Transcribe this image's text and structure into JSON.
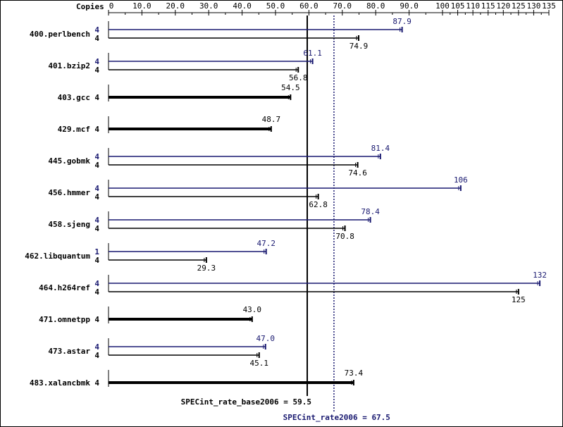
{
  "chart_data": {
    "type": "bar",
    "copies_label": "Copies",
    "x_axis": {
      "min": 0,
      "max": 135,
      "ticks": [
        0,
        10,
        20,
        30,
        40,
        50,
        60,
        70,
        80,
        90,
        100,
        105,
        110,
        115,
        120,
        125,
        130,
        135
      ],
      "tick_labels": [
        "0",
        "10.0",
        "20.0",
        "30.0",
        "40.0",
        "50.0",
        "60.0",
        "70.0",
        "80.0",
        "90.0",
        "100",
        "105",
        "110",
        "115",
        "120",
        "125",
        "130",
        "135"
      ]
    },
    "benchmarks": [
      {
        "name": "400.perlbench",
        "peak": {
          "copies": "4",
          "value": 87.9,
          "label": "87.9"
        },
        "base": {
          "copies": "4",
          "value": 74.9,
          "label": "74.9"
        }
      },
      {
        "name": "401.bzip2",
        "peak": {
          "copies": "4",
          "value": 61.1,
          "label": "61.1"
        },
        "base": {
          "copies": "4",
          "value": 56.8,
          "label": "56.8"
        }
      },
      {
        "name": "403.gcc",
        "single": {
          "copies": "4",
          "value": 54.5,
          "label": "54.5"
        }
      },
      {
        "name": "429.mcf",
        "single": {
          "copies": "4",
          "value": 48.7,
          "label": "48.7"
        }
      },
      {
        "name": "445.gobmk",
        "peak": {
          "copies": "4",
          "value": 81.4,
          "label": "81.4"
        },
        "base": {
          "copies": "4",
          "value": 74.6,
          "label": "74.6"
        }
      },
      {
        "name": "456.hmmer",
        "peak": {
          "copies": "4",
          "value": 106,
          "label": "106"
        },
        "base": {
          "copies": "4",
          "value": 62.8,
          "label": "62.8"
        }
      },
      {
        "name": "458.sjeng",
        "peak": {
          "copies": "4",
          "value": 78.4,
          "label": "78.4"
        },
        "base": {
          "copies": "4",
          "value": 70.8,
          "label": "70.8"
        }
      },
      {
        "name": "462.libquantum",
        "peak": {
          "copies": "1",
          "value": 47.2,
          "label": "47.2"
        },
        "base": {
          "copies": "4",
          "value": 29.3,
          "label": "29.3"
        }
      },
      {
        "name": "464.h264ref",
        "peak": {
          "copies": "4",
          "value": 132,
          "label": "132"
        },
        "base": {
          "copies": "4",
          "value": 125,
          "label": "125"
        }
      },
      {
        "name": "471.omnetpp",
        "single": {
          "copies": "4",
          "value": 43.0,
          "label": "43.0"
        }
      },
      {
        "name": "473.astar",
        "peak": {
          "copies": "4",
          "value": 47.0,
          "label": "47.0"
        },
        "base": {
          "copies": "4",
          "value": 45.1,
          "label": "45.1"
        }
      },
      {
        "name": "483.xalancbmk",
        "single": {
          "copies": "4",
          "value": 73.4,
          "label": "73.4"
        }
      }
    ],
    "reference_lines": {
      "base": {
        "value": 59.5,
        "label": "SPECint_rate_base2006 = 59.5"
      },
      "peak": {
        "value": 67.5,
        "label": "SPECint_rate2006 = 67.5"
      }
    },
    "colors": {
      "base": "#000000",
      "peak": "#191970"
    }
  }
}
